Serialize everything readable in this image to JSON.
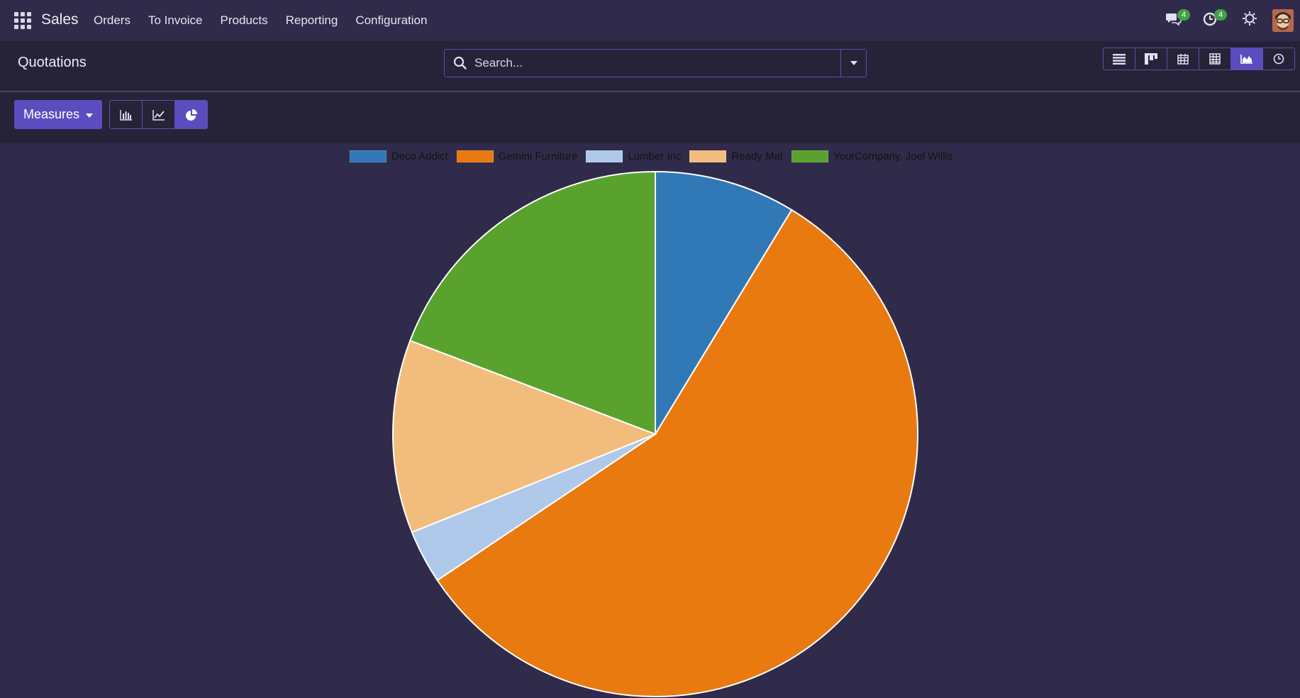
{
  "navbar": {
    "brand": "Sales",
    "menu": [
      "Orders",
      "To Invoice",
      "Products",
      "Reporting",
      "Configuration"
    ],
    "messages_count": "4",
    "activities_count": "4"
  },
  "control_panel": {
    "title": "Quotations",
    "search_placeholder": "Search...",
    "views": [
      "list",
      "kanban",
      "calendar",
      "pivot",
      "graph",
      "activity"
    ],
    "active_view": "graph"
  },
  "graph_toolbar": {
    "measures_label": "Measures",
    "modes": [
      "bar",
      "line",
      "pie"
    ],
    "active_mode": "pie"
  },
  "chart_data": {
    "type": "pie",
    "title": "",
    "categories": [
      "Deco Addict",
      "Gemini Furniture",
      "Lumber Inc",
      "Ready Mat",
      "YourCompany, Joel Willis"
    ],
    "values": [
      8.7,
      56.9,
      3.3,
      11.9,
      19.2
    ],
    "unit": "percent",
    "colors": [
      "#3178b6",
      "#e97a10",
      "#b0c9ea",
      "#f2bd7c",
      "#5aa22e"
    ],
    "legend": "top"
  }
}
